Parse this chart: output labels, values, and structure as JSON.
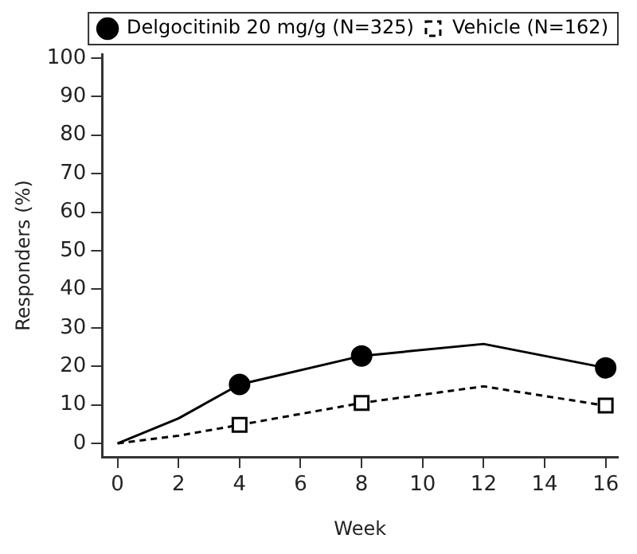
{
  "chart_data": {
    "type": "line",
    "xlabel": "Week",
    "ylabel": "Responders (%)",
    "xlim": [
      -0.5,
      16.4
    ],
    "xticks": [
      0,
      2,
      4,
      6,
      8,
      10,
      12,
      14,
      16
    ],
    "ylim": [
      -3.5,
      101
    ],
    "yticks": [
      0,
      10,
      20,
      30,
      40,
      50,
      60,
      70,
      80,
      90,
      100
    ],
    "grid": false,
    "legend": "top right",
    "series": [
      {
        "color": "#000000",
        "marker": "none",
        "line_style": "solid",
        "x": [
          0,
          2,
          4,
          8,
          12,
          16
        ],
        "values": [
          0,
          6.5,
          15.3,
          22.7,
          25.8,
          19.6
        ]
      },
      {
        "type": "scatter",
        "name": "Delgocitinib 20 mg/g (N=325)",
        "color": "#000000",
        "marker": "circle",
        "line_style": "solid",
        "x": [
          4,
          8,
          16
        ],
        "values": [
          15.3,
          22.7,
          19.6
        ]
      },
      {
        "color": "#000000",
        "marker": "none",
        "line_style": "dashed",
        "x": [
          0,
          2,
          4,
          8,
          12,
          16
        ],
        "values": [
          0,
          2,
          4.8,
          10.5,
          14.8,
          9.8
        ]
      },
      {
        "type": "scatter",
        "name": "Vehicle (N=162)",
        "color": "#000000",
        "marker": "square",
        "line_style": "dashed",
        "x": [
          4,
          8,
          16
        ],
        "values": [
          4.8,
          10.5,
          9.8
        ]
      }
    ]
  }
}
